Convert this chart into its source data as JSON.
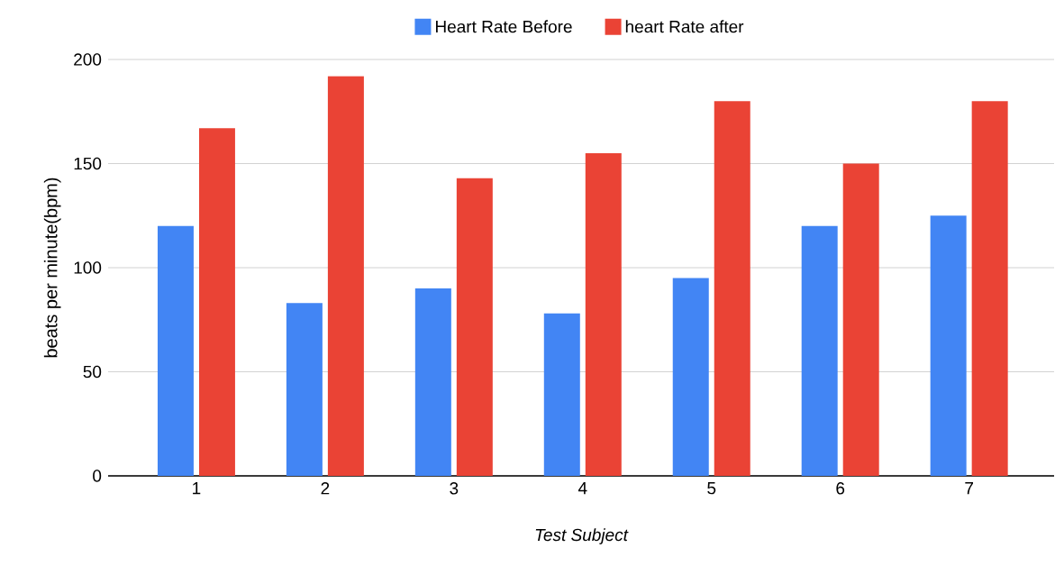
{
  "chart_data": {
    "type": "bar",
    "xlabel": "Test Subject",
    "ylabel": "beats per minute(bpm)",
    "categories": [
      "1",
      "2",
      "3",
      "4",
      "5",
      "6",
      "7"
    ],
    "series": [
      {
        "name": "Heart Rate Before",
        "color": "#4285f4",
        "values": [
          120,
          83,
          90,
          78,
          95,
          120,
          125
        ]
      },
      {
        "name": "heart Rate after",
        "color": "#ea4335",
        "values": [
          167,
          192,
          143,
          155,
          180,
          150,
          180
        ]
      }
    ],
    "ylim": [
      0,
      200
    ],
    "yticks": [
      0,
      50,
      100,
      150,
      200
    ],
    "grid": "y",
    "legend": "top"
  }
}
